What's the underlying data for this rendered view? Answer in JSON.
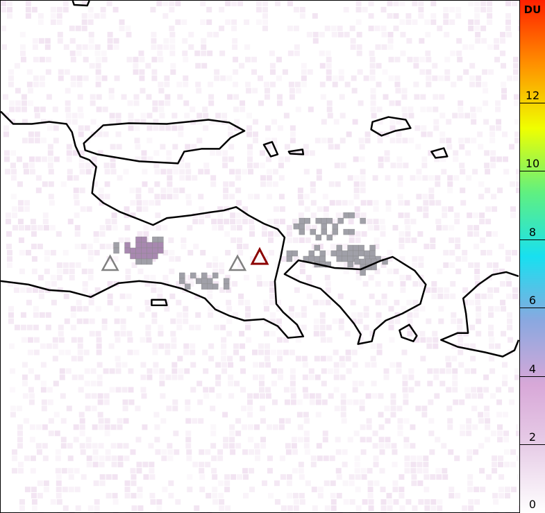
{
  "colorbar": {
    "unit": "DU",
    "ticks": [
      "0",
      "2",
      "4",
      "6",
      "8",
      "10",
      "12"
    ],
    "range": [
      0,
      15
    ],
    "colors": [
      "#ffffff",
      "#e8cfe8",
      "#d8a8d8",
      "#8aa8e0",
      "#18e0f0",
      "#60f080",
      "#f0ff00",
      "#ff9000",
      "#ff2000"
    ]
  },
  "markers": [
    {
      "name": "volcano-west",
      "color": "#808080"
    },
    {
      "name": "volcano-central",
      "color": "#808080"
    },
    {
      "name": "volcano-active",
      "color": "#8b0000"
    }
  ],
  "colors": {
    "coastline": "#000000",
    "flagged_pixels": "#a0a0a8",
    "background_noise": "#eedcee"
  }
}
